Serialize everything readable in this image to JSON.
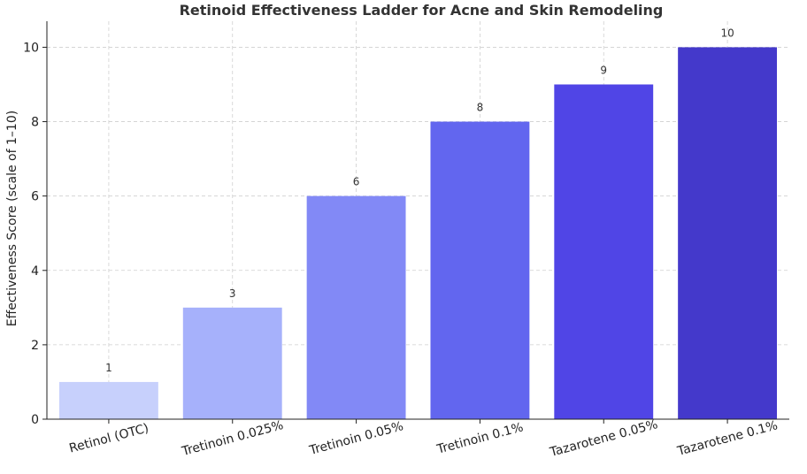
{
  "chart_data": {
    "type": "bar",
    "title": "Retinoid Effectiveness Ladder for Acne and Skin Remodeling",
    "xlabel": "",
    "ylabel": "Effectiveness Score (scale of 1–10)",
    "categories": [
      "Retinol (OTC)",
      "Tretinoin 0.025%",
      "Tretinoin 0.05%",
      "Tretinoin 0.1%",
      "Tazarotene 0.05%",
      "Tazarotene 0.1%"
    ],
    "values": [
      1,
      3,
      6,
      8,
      9,
      10
    ],
    "ylim": [
      0,
      10.7
    ],
    "yticks": [
      0,
      2,
      4,
      6,
      8,
      10
    ],
    "grid": true,
    "data_labels": true,
    "colors": [
      "#c7d0fc",
      "#a6b1fb",
      "#8289f6",
      "#6266ef",
      "#5045e6",
      "#4439cb"
    ]
  }
}
